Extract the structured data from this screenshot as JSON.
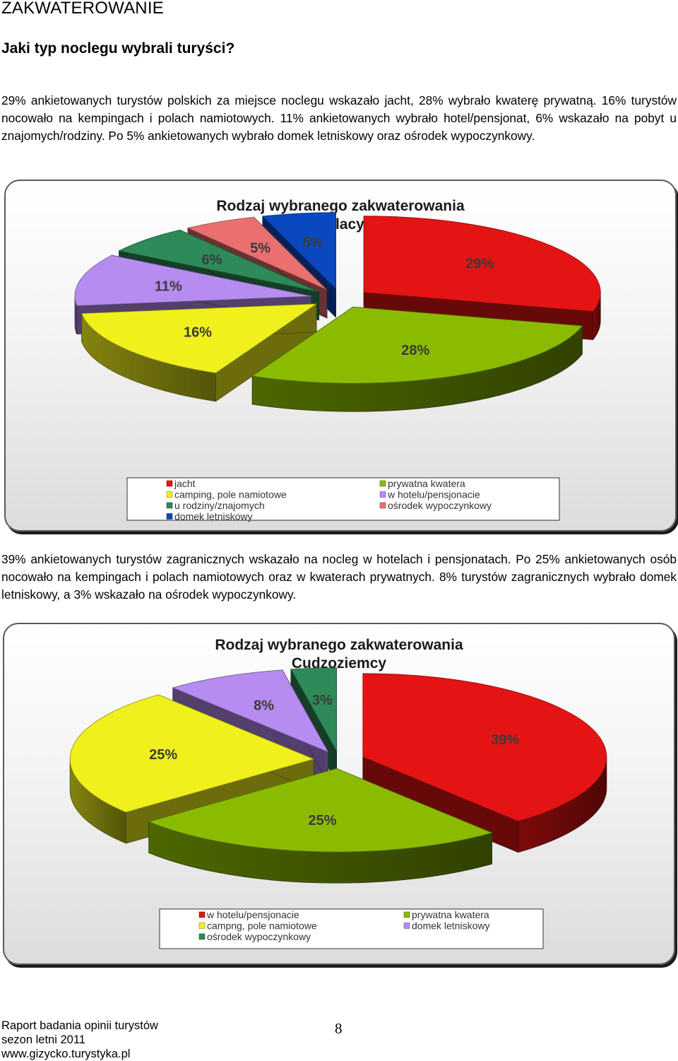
{
  "header": {
    "title": "ZAKWATEROWANIE",
    "subtitle": "Jaki typ noclegu wybrali turyści?"
  },
  "section_polish": {
    "paragraph": "29% ankietowanych turystów polskich za miejsce noclegu wskazało jacht, 28% wybrało kwaterę prywatną. 16% turystów nocowało na kempingach i polach namiotowych. 11% ankietowanych wybrało hotel/pensjonat, 6% wskazało na pobyt u znajomych/rodziny. Po 5% ankietowanych wybrało domek letniskowy oraz ośrodek wypoczynkowy."
  },
  "section_foreign": {
    "paragraph": "39% ankietowanych turystów zagranicznych wskazało na nocleg w hotelach i pensjonatach. Po 25% ankietowanych osób nocowało na kempingach i polach namiotowych oraz w kwaterach prywatnych. 8% turystów zagranicznych wybrało domek letniskowy, a 3% wskazało na ośrodek wypoczynkowy."
  },
  "chart_data": [
    {
      "type": "pie",
      "title": "Rodzaj wybranego zakwaterowania",
      "subtitle": "Polacy",
      "slices": [
        {
          "label": "jacht",
          "value": 29,
          "data_label": "29%",
          "color": "#e41414"
        },
        {
          "label": "prywatna kwatera",
          "value": 28,
          "data_label": "28%",
          "color": "#8bbb00"
        },
        {
          "label": "camping, pole namiotowe",
          "value": 16,
          "data_label": "16%",
          "color": "#f0f01c"
        },
        {
          "label": "w hotelu/pensjonacie",
          "value": 11,
          "data_label": "11%",
          "color": "#b68cf0"
        },
        {
          "label": "u rodziny/znajomych",
          "value": 6,
          "data_label": "6%",
          "color": "#2e8a58"
        },
        {
          "label": "ośrodek wypoczynkowy",
          "value": 5,
          "data_label": "5%",
          "color": "#ea7070"
        },
        {
          "label": "domek letniskowy",
          "value": 5,
          "data_label": "5%",
          "color": "#0a48c0"
        }
      ],
      "legend_order": [
        "jacht",
        "prywatna kwatera",
        "camping, pole namiotowe",
        "w hotelu/pensjonacie",
        "u rodziny/znajomych",
        "ośrodek wypoczynkowy",
        "domek letniskowy"
      ],
      "legend_placement": "bottom",
      "exploded": true,
      "style": "3d"
    },
    {
      "type": "pie",
      "title": "Rodzaj wybranego zakwaterowania",
      "subtitle": "Cudzoziemcy",
      "slices": [
        {
          "label": "w hotelu/pensjonacie",
          "value": 39,
          "data_label": "39%",
          "color": "#e41414"
        },
        {
          "label": "prywatna kwatera",
          "value": 25,
          "data_label": "25%",
          "color": "#8bbb00"
        },
        {
          "label": "campng, pole namiotowe",
          "value": 25,
          "data_label": "25%",
          "color": "#f0f01c"
        },
        {
          "label": "domek letniskowy",
          "value": 8,
          "data_label": "8%",
          "color": "#b68cf0"
        },
        {
          "label": "ośrodek wypoczynkowy",
          "value": 3,
          "data_label": "3%",
          "color": "#2e8a58"
        }
      ],
      "legend_order": [
        "w hotelu/pensjonacie",
        "prywatna kwatera",
        "campng, pole namiotowe",
        "domek letniskowy",
        "ośrodek wypoczynkowy"
      ],
      "legend_placement": "bottom",
      "exploded": true,
      "style": "3d"
    }
  ],
  "footer": {
    "line1": "Raport badania opinii turystów",
    "line2": "sezon letni 2011",
    "line3": "www.gizycko.turystyka.pl",
    "page_number": "8"
  }
}
